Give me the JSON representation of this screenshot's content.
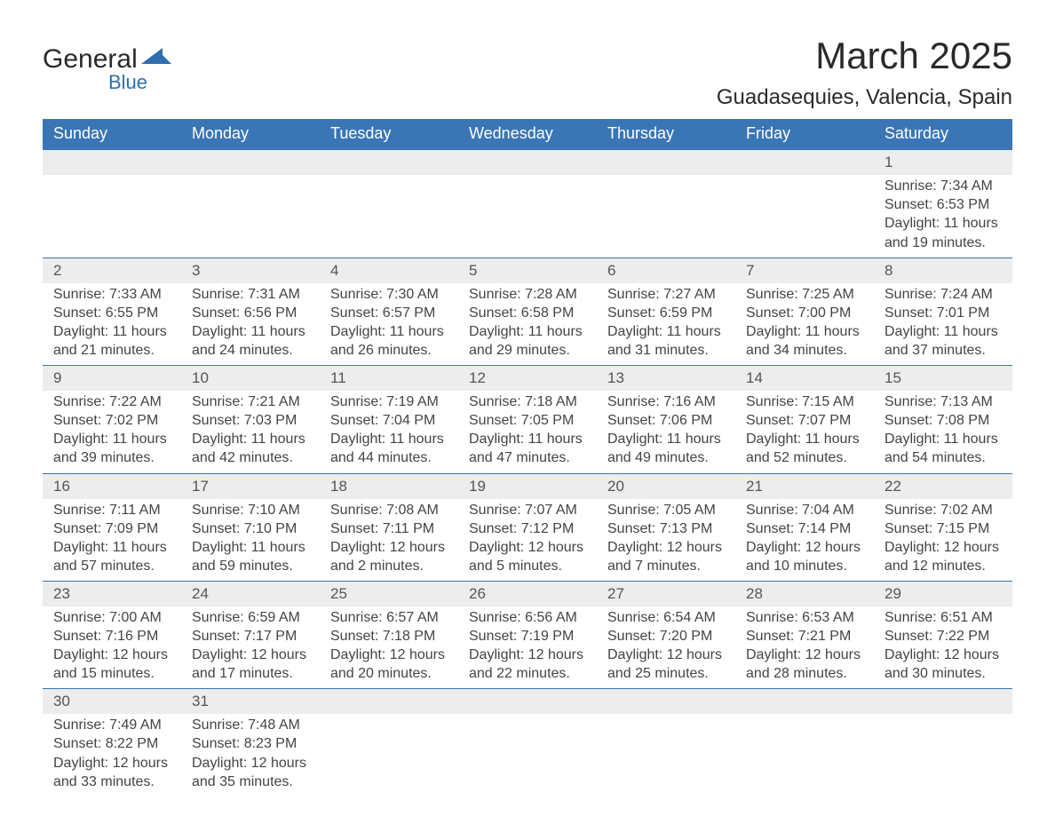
{
  "brand": {
    "name_top": "General",
    "name_bottom": "Blue",
    "text_color": "#2a2a2a",
    "accent_color": "#2f6fb0"
  },
  "header": {
    "title": "March 2025",
    "location": "Guadasequies, Valencia, Spain"
  },
  "colors": {
    "header_bg": "#3a76b6",
    "header_text": "#ffffff",
    "daynum_bg": "#ededed",
    "row_border": "#3a76b6",
    "body_text": "#444444",
    "page_bg": "#ffffff"
  },
  "typography": {
    "title_fontsize": 42,
    "location_fontsize": 24,
    "dayheader_fontsize": 18,
    "daynum_fontsize": 17,
    "cell_fontsize": 16,
    "font_family": "Arial"
  },
  "calendar": {
    "type": "table",
    "day_headers": [
      "Sunday",
      "Monday",
      "Tuesday",
      "Wednesday",
      "Thursday",
      "Friday",
      "Saturday"
    ],
    "labels": {
      "sunrise": "Sunrise:",
      "sunset": "Sunset:",
      "daylight": "Daylight:"
    },
    "weeks": [
      [
        null,
        null,
        null,
        null,
        null,
        null,
        {
          "n": "1",
          "sr": "7:34 AM",
          "ss": "6:53 PM",
          "dl": "11 hours and 19 minutes."
        }
      ],
      [
        {
          "n": "2",
          "sr": "7:33 AM",
          "ss": "6:55 PM",
          "dl": "11 hours and 21 minutes."
        },
        {
          "n": "3",
          "sr": "7:31 AM",
          "ss": "6:56 PM",
          "dl": "11 hours and 24 minutes."
        },
        {
          "n": "4",
          "sr": "7:30 AM",
          "ss": "6:57 PM",
          "dl": "11 hours and 26 minutes."
        },
        {
          "n": "5",
          "sr": "7:28 AM",
          "ss": "6:58 PM",
          "dl": "11 hours and 29 minutes."
        },
        {
          "n": "6",
          "sr": "7:27 AM",
          "ss": "6:59 PM",
          "dl": "11 hours and 31 minutes."
        },
        {
          "n": "7",
          "sr": "7:25 AM",
          "ss": "7:00 PM",
          "dl": "11 hours and 34 minutes."
        },
        {
          "n": "8",
          "sr": "7:24 AM",
          "ss": "7:01 PM",
          "dl": "11 hours and 37 minutes."
        }
      ],
      [
        {
          "n": "9",
          "sr": "7:22 AM",
          "ss": "7:02 PM",
          "dl": "11 hours and 39 minutes."
        },
        {
          "n": "10",
          "sr": "7:21 AM",
          "ss": "7:03 PM",
          "dl": "11 hours and 42 minutes."
        },
        {
          "n": "11",
          "sr": "7:19 AM",
          "ss": "7:04 PM",
          "dl": "11 hours and 44 minutes."
        },
        {
          "n": "12",
          "sr": "7:18 AM",
          "ss": "7:05 PM",
          "dl": "11 hours and 47 minutes."
        },
        {
          "n": "13",
          "sr": "7:16 AM",
          "ss": "7:06 PM",
          "dl": "11 hours and 49 minutes."
        },
        {
          "n": "14",
          "sr": "7:15 AM",
          "ss": "7:07 PM",
          "dl": "11 hours and 52 minutes."
        },
        {
          "n": "15",
          "sr": "7:13 AM",
          "ss": "7:08 PM",
          "dl": "11 hours and 54 minutes."
        }
      ],
      [
        {
          "n": "16",
          "sr": "7:11 AM",
          "ss": "7:09 PM",
          "dl": "11 hours and 57 minutes."
        },
        {
          "n": "17",
          "sr": "7:10 AM",
          "ss": "7:10 PM",
          "dl": "11 hours and 59 minutes."
        },
        {
          "n": "18",
          "sr": "7:08 AM",
          "ss": "7:11 PM",
          "dl": "12 hours and 2 minutes."
        },
        {
          "n": "19",
          "sr": "7:07 AM",
          "ss": "7:12 PM",
          "dl": "12 hours and 5 minutes."
        },
        {
          "n": "20",
          "sr": "7:05 AM",
          "ss": "7:13 PM",
          "dl": "12 hours and 7 minutes."
        },
        {
          "n": "21",
          "sr": "7:04 AM",
          "ss": "7:14 PM",
          "dl": "12 hours and 10 minutes."
        },
        {
          "n": "22",
          "sr": "7:02 AM",
          "ss": "7:15 PM",
          "dl": "12 hours and 12 minutes."
        }
      ],
      [
        {
          "n": "23",
          "sr": "7:00 AM",
          "ss": "7:16 PM",
          "dl": "12 hours and 15 minutes."
        },
        {
          "n": "24",
          "sr": "6:59 AM",
          "ss": "7:17 PM",
          "dl": "12 hours and 17 minutes."
        },
        {
          "n": "25",
          "sr": "6:57 AM",
          "ss": "7:18 PM",
          "dl": "12 hours and 20 minutes."
        },
        {
          "n": "26",
          "sr": "6:56 AM",
          "ss": "7:19 PM",
          "dl": "12 hours and 22 minutes."
        },
        {
          "n": "27",
          "sr": "6:54 AM",
          "ss": "7:20 PM",
          "dl": "12 hours and 25 minutes."
        },
        {
          "n": "28",
          "sr": "6:53 AM",
          "ss": "7:21 PM",
          "dl": "12 hours and 28 minutes."
        },
        {
          "n": "29",
          "sr": "6:51 AM",
          "ss": "7:22 PM",
          "dl": "12 hours and 30 minutes."
        }
      ],
      [
        {
          "n": "30",
          "sr": "7:49 AM",
          "ss": "8:22 PM",
          "dl": "12 hours and 33 minutes."
        },
        {
          "n": "31",
          "sr": "7:48 AM",
          "ss": "8:23 PM",
          "dl": "12 hours and 35 minutes."
        },
        null,
        null,
        null,
        null,
        null
      ]
    ]
  }
}
